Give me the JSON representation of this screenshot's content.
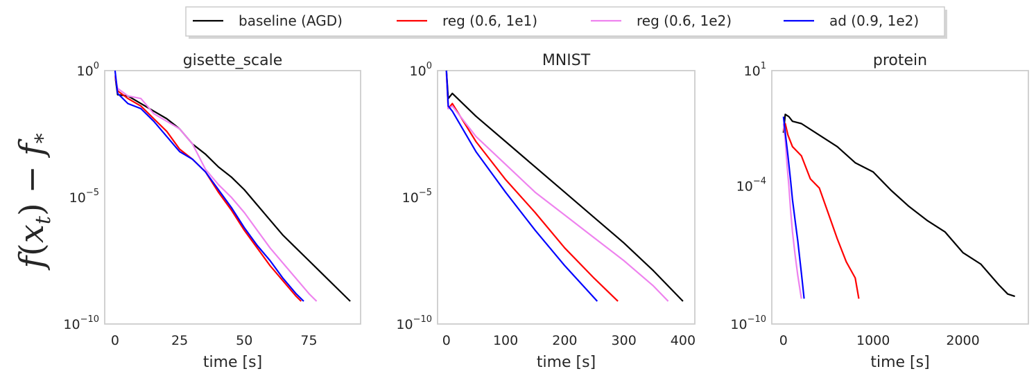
{
  "chart_data": [
    {
      "type": "line",
      "title": "gisette_scale",
      "xlabel": "time [s]",
      "ylabel": "f(x_t) - f_*",
      "yscale": "log",
      "xlim": [
        -4,
        95
      ],
      "ylim_exp": [
        -10,
        0
      ],
      "xticks": [
        0,
        25,
        50,
        75
      ],
      "xtick_labels": [
        "0",
        "25",
        "50",
        "75"
      ],
      "yticks_exp": [
        0,
        -5,
        -10
      ],
      "series": [
        {
          "name": "baseline (AGD)",
          "color": "#000000",
          "x": [
            0,
            1,
            5,
            10,
            15,
            20,
            25,
            30,
            35,
            40,
            45,
            50,
            55,
            60,
            65,
            70,
            75,
            80,
            85,
            88,
            91
          ],
          "logy": [
            -0.2,
            -0.95,
            -1.0,
            -1.3,
            -1.6,
            -1.9,
            -2.3,
            -2.9,
            -3.3,
            -3.8,
            -4.2,
            -4.7,
            -5.3,
            -5.9,
            -6.5,
            -7.0,
            -7.5,
            -8.0,
            -8.5,
            -8.8,
            -9.1
          ]
        },
        {
          "name": "reg (0.6, 1e1)",
          "color": "#ff0000",
          "x": [
            0,
            1,
            5,
            10,
            15,
            20,
            25,
            30,
            35,
            40,
            45,
            50,
            55,
            60,
            65,
            70,
            72
          ],
          "logy": [
            -0.2,
            -0.8,
            -1.1,
            -1.4,
            -1.9,
            -2.4,
            -3.1,
            -3.5,
            -4.0,
            -4.8,
            -5.5,
            -6.3,
            -7.0,
            -7.7,
            -8.3,
            -8.9,
            -9.1
          ]
        },
        {
          "name": "reg (0.6, 1e2)",
          "color": "#ee82ee",
          "x": [
            0,
            1,
            5,
            10,
            15,
            20,
            25,
            30,
            35,
            40,
            45,
            50,
            55,
            60,
            65,
            70,
            75,
            78
          ],
          "logy": [
            -0.2,
            -0.7,
            -1.0,
            -1.1,
            -1.7,
            -2.0,
            -2.3,
            -2.9,
            -3.9,
            -4.5,
            -5.0,
            -5.6,
            -6.3,
            -7.0,
            -7.6,
            -8.2,
            -8.8,
            -9.1
          ]
        },
        {
          "name": "ad (0.9, 1e2)",
          "color": "#0000ff",
          "x": [
            0,
            1,
            5,
            10,
            15,
            20,
            25,
            30,
            35,
            40,
            45,
            50,
            55,
            60,
            65,
            70,
            73
          ],
          "logy": [
            0.0,
            -0.9,
            -1.3,
            -1.5,
            -2.0,
            -2.6,
            -3.2,
            -3.5,
            -4.0,
            -4.7,
            -5.4,
            -6.2,
            -6.9,
            -7.5,
            -8.2,
            -8.8,
            -9.1
          ]
        }
      ]
    },
    {
      "type": "line",
      "title": "MNIST",
      "xlabel": "time [s]",
      "ylabel": "f(x_t) - f_*",
      "yscale": "log",
      "xlim": [
        -15,
        420
      ],
      "ylim_exp": [
        -10,
        0
      ],
      "xticks": [
        0,
        100,
        200,
        300,
        400
      ],
      "xtick_labels": [
        "0",
        "100",
        "200",
        "300",
        "400"
      ],
      "yticks_exp": [
        0,
        -5,
        -10
      ],
      "series": [
        {
          "name": "baseline (AGD)",
          "color": "#000000",
          "x": [
            0,
            3,
            10,
            50,
            100,
            150,
            200,
            250,
            300,
            350,
            375,
            400
          ],
          "logy": [
            0.0,
            -1.1,
            -0.9,
            -1.8,
            -2.8,
            -3.8,
            -4.8,
            -5.8,
            -6.8,
            -7.9,
            -8.5,
            -9.1
          ]
        },
        {
          "name": "reg (0.6, 1e1)",
          "color": "#ff0000",
          "x": [
            0,
            3,
            10,
            50,
            100,
            150,
            200,
            250,
            290
          ],
          "logy": [
            -0.1,
            -1.5,
            -1.3,
            -2.8,
            -4.3,
            -5.6,
            -7.0,
            -8.2,
            -9.1
          ]
        },
        {
          "name": "reg (0.6, 1e2)",
          "color": "#ee82ee",
          "x": [
            0,
            3,
            10,
            50,
            100,
            150,
            200,
            250,
            300,
            350,
            375
          ],
          "logy": [
            -0.1,
            -1.5,
            -1.4,
            -2.6,
            -3.7,
            -4.8,
            -5.7,
            -6.6,
            -7.5,
            -8.5,
            -9.1
          ]
        },
        {
          "name": "ad (0.9, 1e2)",
          "color": "#0000ff",
          "x": [
            0,
            3,
            10,
            50,
            100,
            150,
            200,
            255
          ],
          "logy": [
            0.0,
            -1.4,
            -1.6,
            -3.2,
            -4.8,
            -6.3,
            -7.7,
            -9.1
          ]
        }
      ]
    },
    {
      "type": "line",
      "title": "protein",
      "xlabel": "time [s]",
      "ylabel": "f(x_t) - f_*",
      "yscale": "log",
      "xlim": [
        -130,
        2730
      ],
      "ylim_exp": [
        -10,
        1
      ],
      "xticks": [
        0,
        1000,
        2000
      ],
      "xtick_labels": [
        "0",
        "1000",
        "2000"
      ],
      "yticks_exp": [
        1,
        -4,
        -10
      ],
      "series": [
        {
          "name": "baseline (AGD)",
          "color": "#000000",
          "x": [
            0,
            20,
            60,
            100,
            200,
            400,
            600,
            800,
            1000,
            1200,
            1400,
            1600,
            1800,
            2000,
            2200,
            2400,
            2500,
            2580
          ],
          "logy": [
            -1.7,
            -0.9,
            -1.0,
            -1.2,
            -1.3,
            -1.8,
            -2.3,
            -3.0,
            -3.4,
            -4.2,
            -4.9,
            -5.5,
            -6.0,
            -6.9,
            -7.4,
            -8.3,
            -8.7,
            -8.8
          ]
        },
        {
          "name": "reg (0.6, 1e1)",
          "color": "#ff0000",
          "x": [
            0,
            20,
            50,
            100,
            200,
            300,
            400,
            500,
            600,
            700,
            800,
            840
          ],
          "logy": [
            -1.6,
            -1.3,
            -1.8,
            -2.3,
            -2.7,
            -3.7,
            -4.1,
            -5.2,
            -6.3,
            -7.3,
            -8.0,
            -8.9
          ]
        },
        {
          "name": "reg (0.6, 1e2)",
          "color": "#ee82ee",
          "x": [
            0,
            20,
            40,
            60,
            80,
            100,
            130,
            160,
            200
          ],
          "logy": [
            -1.3,
            -2.0,
            -3.1,
            -4.0,
            -5.1,
            -6.0,
            -7.0,
            -7.9,
            -8.9
          ]
        },
        {
          "name": "ad (0.9, 1e2)",
          "color": "#0000ff",
          "x": [
            0,
            20,
            50,
            80,
            100,
            130,
            160,
            200,
            230
          ],
          "logy": [
            -1.0,
            -1.7,
            -2.7,
            -3.8,
            -4.6,
            -5.5,
            -6.4,
            -7.8,
            -8.9
          ]
        }
      ]
    }
  ],
  "legend": {
    "entries": [
      {
        "label": "baseline (AGD)",
        "color": "#000000"
      },
      {
        "label": "reg (0.6, 1e1)",
        "color": "#ff0000"
      },
      {
        "label": "reg (0.6, 1e2)",
        "color": "#ee82ee"
      },
      {
        "label": "ad (0.9, 1e2)",
        "color": "#0000ff"
      }
    ]
  },
  "ylabel": {
    "f": "f",
    "open": "(",
    "x": "x",
    "sub_t": "t",
    "close": ")",
    "minus": "−",
    "f2": "f",
    "sub_star": "*"
  },
  "style": {
    "axes_edge": "#cccccc",
    "text": "#262626",
    "background": "#ffffff"
  }
}
